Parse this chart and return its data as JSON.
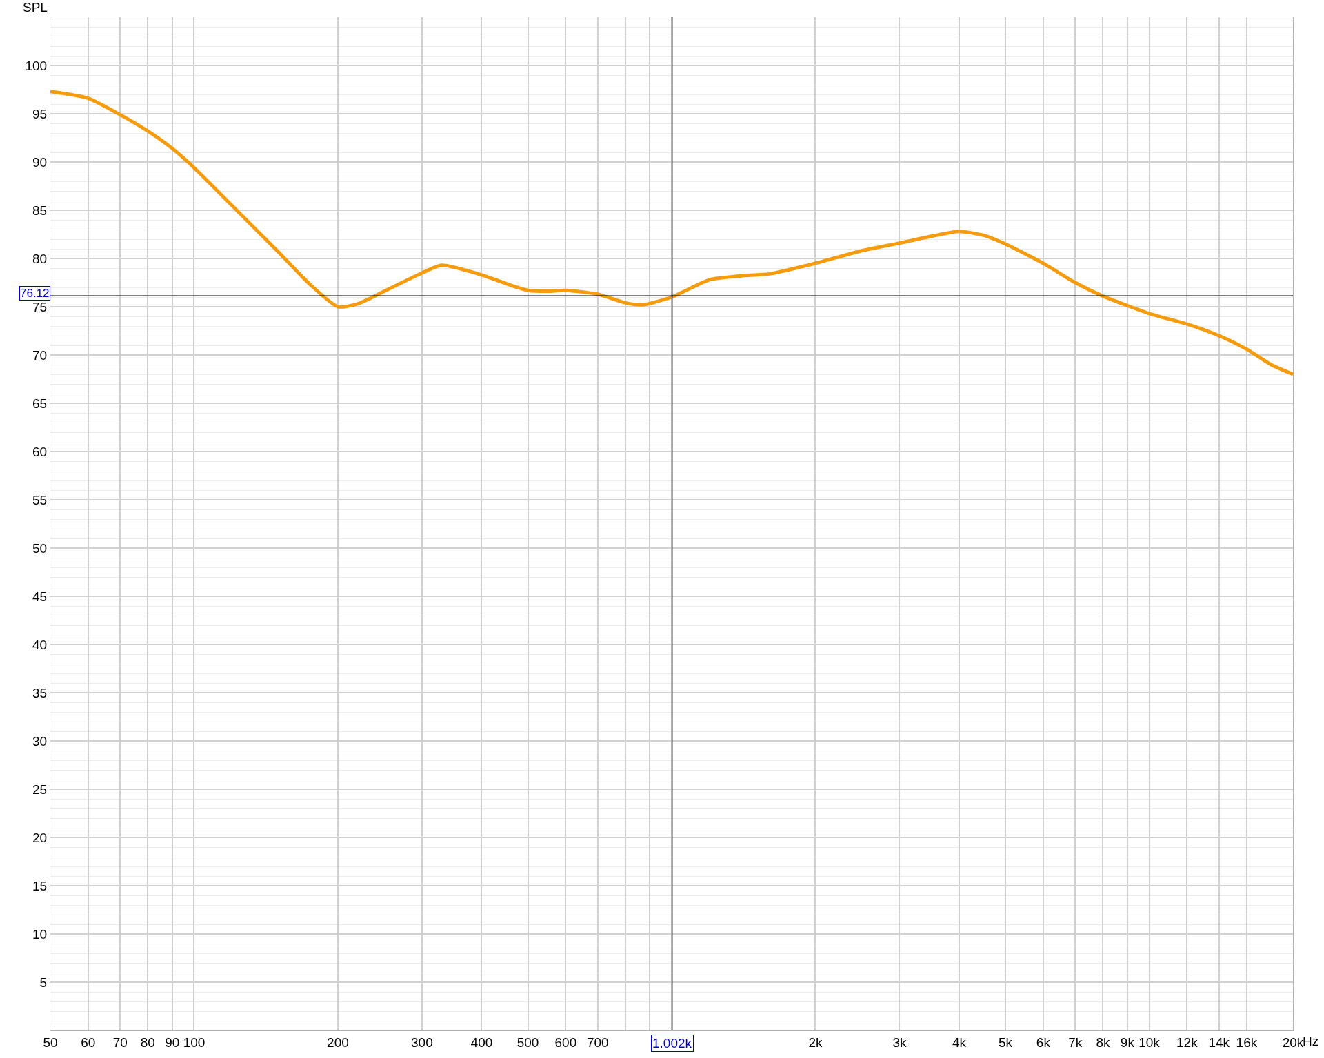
{
  "chart_data": {
    "type": "line",
    "ylabel": "SPL",
    "log": "x",
    "x": [
      50,
      60,
      70,
      80,
      90,
      100,
      120,
      150,
      175,
      200,
      220,
      250,
      300,
      330,
      400,
      450,
      500,
      550,
      600,
      700,
      800,
      870,
      1000,
      1200,
      1400,
      1600,
      2000,
      2500,
      3000,
      3500,
      4000,
      4500,
      5000,
      6000,
      7000,
      8000,
      10000,
      12000,
      14000,
      16000,
      18000,
      20000
    ],
    "series": [
      {
        "color": "#f59b0c",
        "values": [
          97.3,
          96.6,
          94.9,
          93.2,
          91.4,
          89.4,
          85.5,
          80.7,
          77.3,
          75.0,
          75.3,
          76.6,
          78.5,
          79.3,
          78.3,
          77.4,
          76.7,
          76.6,
          76.7,
          76.3,
          75.4,
          75.2,
          76.0,
          77.8,
          78.2,
          78.4,
          79.5,
          80.8,
          81.6,
          82.3,
          82.8,
          82.4,
          81.5,
          79.5,
          77.5,
          76.1,
          74.3,
          73.2,
          72.0,
          70.6,
          69.0,
          68.0
        ]
      }
    ],
    "xlim": [
      50,
      20000
    ],
    "xticks": [
      50,
      60,
      70,
      80,
      90,
      100,
      200,
      300,
      400,
      500,
      600,
      700,
      {
        "value": 800,
        "label": null
      },
      {
        "value": 900,
        "label": null
      },
      {
        "value": 1000,
        "label": null
      },
      {
        "value": 2000,
        "label": "2k"
      },
      {
        "value": 3000,
        "label": "3k"
      },
      {
        "value": 4000,
        "label": "4k"
      },
      {
        "value": 5000,
        "label": "5k"
      },
      {
        "value": 6000,
        "label": "6k"
      },
      {
        "value": 7000,
        "label": "7k"
      },
      {
        "value": 8000,
        "label": "8k"
      },
      {
        "value": 9000,
        "label": "9k"
      },
      {
        "value": 10000,
        "label": "10k"
      },
      {
        "value": 12000,
        "label": "12k"
      },
      {
        "value": 14000,
        "label": "14k"
      },
      {
        "value": 16000,
        "label": "16k"
      },
      {
        "value": 20000,
        "label": "20k"
      }
    ],
    "xlabel": "Hz",
    "ylim": [
      0,
      105
    ],
    "yticks": [
      5,
      10,
      15,
      20,
      25,
      30,
      35,
      40,
      45,
      50,
      55,
      60,
      65,
      70,
      75,
      80,
      85,
      90,
      95,
      100
    ],
    "ref_lines": [
      {
        "axis": "x",
        "value": 1002,
        "label": "1.002k",
        "color": "#000000"
      },
      {
        "axis": "y",
        "value": 76.12,
        "label": "76.12",
        "color": "#000000"
      }
    ],
    "grid": true,
    "marker": "none",
    "line_style": "solid"
  }
}
